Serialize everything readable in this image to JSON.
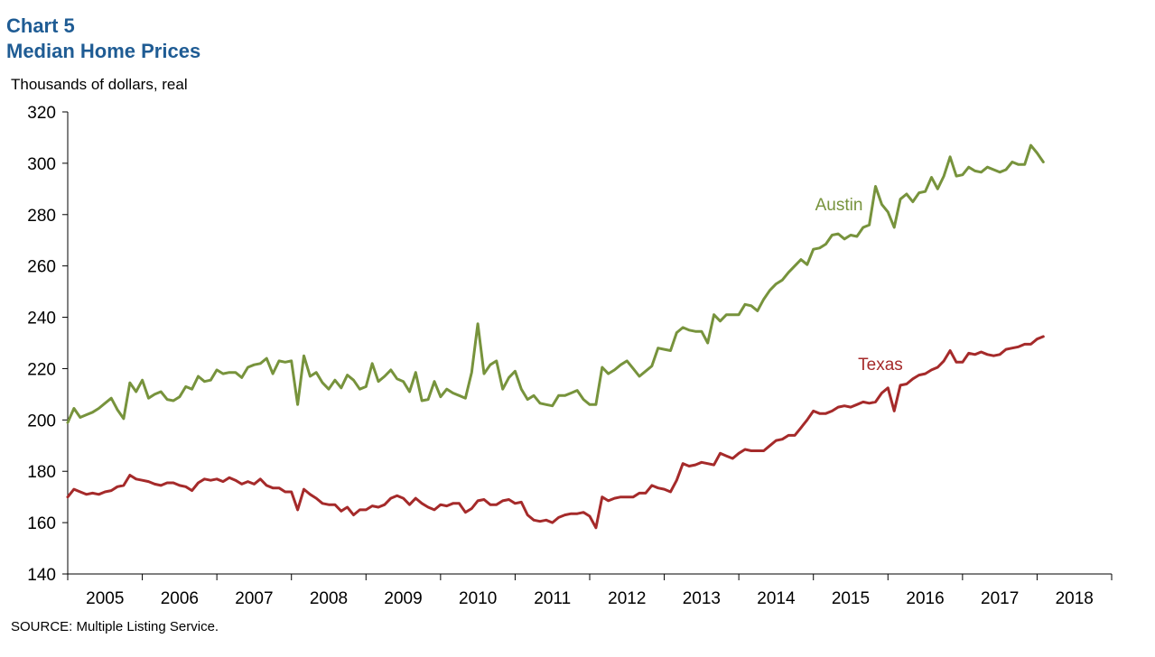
{
  "header": {
    "chart_number": "Chart 5",
    "title": "Median Home Prices"
  },
  "footer": {
    "source": "SOURCE: Multiple Listing Service."
  },
  "chart_data": {
    "type": "line",
    "title": "Median Home Prices",
    "ylabel": "Thousands  of dollars, real",
    "xlabel": "",
    "ylim": [
      140,
      320
    ],
    "yticks": [
      140,
      160,
      180,
      200,
      220,
      240,
      260,
      280,
      300,
      320
    ],
    "xlim": [
      2005.0,
      2019.0
    ],
    "xtick_labels": [
      "2005",
      "2006",
      "2007",
      "2008",
      "2009",
      "2010",
      "2011",
      "2012",
      "2013",
      "2014",
      "2015",
      "2016",
      "2017",
      "2018"
    ],
    "grid": false,
    "x_start": "2005-01",
    "frequency": "monthly",
    "series": [
      {
        "name": "Austin",
        "color": "#77933C",
        "values": [
          199,
          204.5,
          201,
          202,
          203,
          204.5,
          206.5,
          208.5,
          204,
          200.5,
          214.5,
          211,
          215.5,
          208.5,
          210,
          211,
          208,
          207.5,
          209,
          213,
          212,
          217,
          215,
          215.5,
          219.5,
          218,
          218.5,
          218.5,
          216.5,
          220.5,
          221.5,
          222,
          224,
          218,
          223,
          222.5,
          223,
          206,
          225,
          217,
          218.5,
          214.5,
          212,
          215.5,
          212.5,
          217.5,
          215.5,
          212,
          213,
          222,
          215,
          217,
          219.5,
          216,
          215,
          211,
          218.5,
          207.5,
          208,
          215,
          209,
          212,
          210.5,
          209.5,
          208.5,
          218.5,
          237.5,
          218,
          221.5,
          223,
          212,
          216.5,
          219,
          212,
          208,
          209.5,
          206.5,
          206,
          205.5,
          209.5,
          209.5,
          210.5,
          211.5,
          208,
          206,
          206,
          220.5,
          218,
          219.5,
          221.5,
          223,
          220,
          217,
          219,
          221,
          228,
          227.5,
          227,
          234,
          236,
          235,
          234.5,
          234.5,
          230,
          241,
          238.5,
          241,
          241,
          241,
          245,
          244.5,
          242.5,
          247,
          250.5,
          253,
          254.5,
          257.5,
          260,
          262.5,
          260.5,
          266.5,
          267,
          268.5,
          272,
          272.5,
          270.5,
          272,
          271.5,
          275,
          276,
          291,
          284,
          281,
          275,
          286,
          288,
          285,
          288.5,
          289,
          294.5,
          290,
          295,
          302.5,
          295,
          295.5,
          298.5,
          297,
          296.5,
          298.5,
          297.5,
          296.5,
          297.5,
          300.5,
          299.5,
          299.5,
          307,
          304,
          300.5
        ]
      },
      {
        "name": "Texas",
        "color": "#A52A2A",
        "values": [
          170,
          173,
          172,
          171,
          171.5,
          171,
          172,
          172.5,
          174,
          174.5,
          178.5,
          177,
          176.5,
          176,
          175,
          174.5,
          175.5,
          175.5,
          174.5,
          174,
          172.5,
          175.5,
          177,
          176.5,
          177,
          176,
          177.5,
          176.5,
          175,
          176,
          175,
          177,
          174.5,
          173.5,
          173.5,
          172,
          172,
          165,
          173,
          171,
          169.5,
          167.5,
          167,
          167,
          164.5,
          166,
          163,
          165,
          165,
          166.5,
          166,
          167,
          169.5,
          170.5,
          169.5,
          167,
          169.5,
          167.5,
          166,
          165,
          167,
          166.5,
          167.5,
          167.5,
          164,
          165.5,
          168.5,
          169,
          167,
          167,
          168.5,
          169,
          167.5,
          168,
          163,
          161,
          160.5,
          161,
          160,
          162,
          163,
          163.5,
          163.5,
          164,
          162.5,
          158,
          170,
          168.5,
          169.5,
          170,
          170,
          170,
          171.5,
          171.5,
          174.5,
          173.5,
          173,
          172,
          176.5,
          183,
          182,
          182.5,
          183.5,
          183,
          182.5,
          187,
          186,
          185,
          187,
          188.5,
          188,
          188,
          188,
          190,
          192,
          192.5,
          194,
          194,
          197,
          200,
          203.5,
          202.5,
          202.5,
          203.5,
          205,
          205.5,
          205,
          206,
          207,
          206.5,
          207,
          210.5,
          212.5,
          203.5,
          213.5,
          214,
          216,
          217.5,
          218,
          219.5,
          220.5,
          223,
          227,
          222.5,
          222.5,
          226,
          225.5,
          226.5,
          225.5,
          225,
          225.5,
          227.5,
          228,
          228.5,
          229.5,
          229.5,
          231.5,
          232.5
        ]
      }
    ]
  }
}
